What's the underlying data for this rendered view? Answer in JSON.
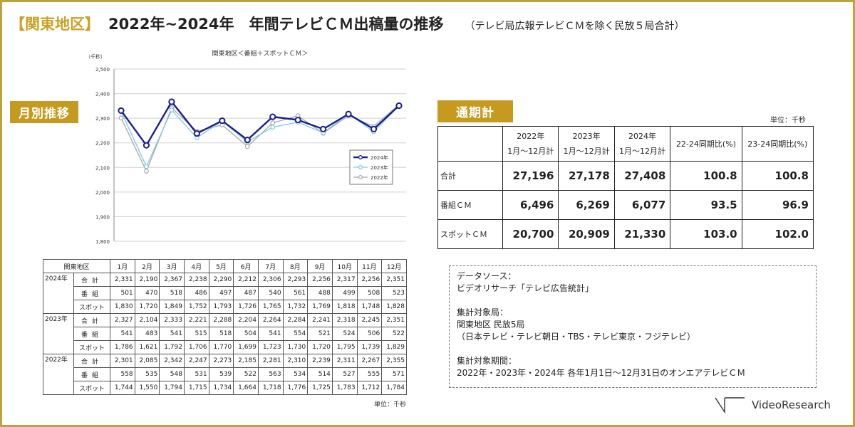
{
  "header": {
    "region": "【関東地区】",
    "title": "2022年~2024年　年間テレビＣＭ出稿量の推移",
    "subtitle": "（テレビ局広報テレビＣＭを除く民放５局合計）"
  },
  "tags": {
    "monthly": "月別推移",
    "annual": "通期計"
  },
  "chart_data": {
    "type": "line",
    "title": "関東地区＜番組＋スポットＣＭ＞",
    "unit_label": "（千秒）",
    "categories": [
      "1月",
      "2月",
      "3月",
      "4月",
      "5月",
      "6月",
      "7月",
      "8月",
      "9月",
      "10月",
      "11月",
      "12月"
    ],
    "ylim": [
      1800,
      2500
    ],
    "yticks": [
      "1,800",
      "1,900",
      "2,000",
      "2,100",
      "2,200",
      "2,300",
      "2,400",
      "2,500"
    ],
    "grid": true,
    "legend_position": "right",
    "show_x_tick_labels": false,
    "series": [
      {
        "name": "2024年",
        "color": "#1a1f8c",
        "values": [
          2331,
          2190,
          2367,
          2238,
          2290,
          2212,
          2306,
          2293,
          2256,
          2317,
          2256,
          2351
        ]
      },
      {
        "name": "2023年",
        "color": "#7ec8e8",
        "values": [
          2327,
          2104,
          2333,
          2221,
          2288,
          2204,
          2264,
          2284,
          2241,
          2318,
          2245,
          2351
        ]
      },
      {
        "name": "2022年",
        "color": "#a8a8a8",
        "values": [
          2301,
          2085,
          2342,
          2247,
          2273,
          2185,
          2281,
          2310,
          2239,
          2311,
          2267,
          2355
        ]
      }
    ]
  },
  "summary": {
    "unit": "単位：千秒",
    "headers": [
      "2022年\n1月～12月計",
      "2023年\n1月～12月計",
      "2024年\n1月～12月計",
      "22-24同期比(%)",
      "23-24同期比(%)"
    ],
    "rows": [
      {
        "label": "合計",
        "values": [
          "27,196",
          "27,178",
          "27,408",
          "100.8",
          "100.8"
        ]
      },
      {
        "label": "番組ＣＭ",
        "values": [
          "6,496",
          "6,269",
          "6,077",
          "93.5",
          "96.9"
        ]
      },
      {
        "label": "スポットＣＭ",
        "values": [
          "20,700",
          "20,909",
          "21,330",
          "103.0",
          "102.0"
        ]
      }
    ]
  },
  "monthly_table": {
    "corner": "関東地区",
    "months": [
      "1月",
      "2月",
      "3月",
      "4月",
      "5月",
      "6月",
      "7月",
      "8月",
      "9月",
      "10月",
      "11月",
      "12月"
    ],
    "unit": "単位：千秒",
    "groups": [
      {
        "year": "2024年",
        "rows": [
          {
            "kind": "合計",
            "values": [
              "2,331",
              "2,190",
              "2,367",
              "2,238",
              "2,290",
              "2,212",
              "2,306",
              "2,293",
              "2,256",
              "2,317",
              "2,256",
              "2,351"
            ]
          },
          {
            "kind": "番組",
            "values": [
              "501",
              "470",
              "518",
              "486",
              "497",
              "487",
              "540",
              "561",
              "488",
              "499",
              "508",
              "523"
            ]
          },
          {
            "kind": "スポット",
            "values": [
              "1,830",
              "1,720",
              "1,849",
              "1,752",
              "1,793",
              "1,726",
              "1,765",
              "1,732",
              "1,769",
              "1,818",
              "1,748",
              "1,828"
            ]
          }
        ]
      },
      {
        "year": "2023年",
        "rows": [
          {
            "kind": "合計",
            "values": [
              "2,327",
              "2,104",
              "2,333",
              "2,221",
              "2,288",
              "2,204",
              "2,264",
              "2,284",
              "2,241",
              "2,318",
              "2,245",
              "2,351"
            ]
          },
          {
            "kind": "番組",
            "values": [
              "541",
              "483",
              "541",
              "515",
              "518",
              "504",
              "541",
              "554",
              "521",
              "524",
              "506",
              "522"
            ]
          },
          {
            "kind": "スポット",
            "values": [
              "1,786",
              "1,621",
              "1,792",
              "1,706",
              "1,770",
              "1,699",
              "1,723",
              "1,730",
              "1,720",
              "1,795",
              "1,739",
              "1,829"
            ]
          }
        ]
      },
      {
        "year": "2022年",
        "rows": [
          {
            "kind": "合計",
            "values": [
              "2,301",
              "2,085",
              "2,342",
              "2,247",
              "2,273",
              "2,185",
              "2,281",
              "2,310",
              "2,239",
              "2,311",
              "2,267",
              "2,355"
            ]
          },
          {
            "kind": "番組",
            "values": [
              "558",
              "535",
              "548",
              "531",
              "539",
              "522",
              "563",
              "534",
              "514",
              "527",
              "555",
              "571"
            ]
          },
          {
            "kind": "スポット",
            "values": [
              "1,744",
              "1,550",
              "1,794",
              "1,715",
              "1,734",
              "1,664",
              "1,718",
              "1,776",
              "1,725",
              "1,783",
              "1,712",
              "1,784"
            ]
          }
        ]
      }
    ]
  },
  "source_box": {
    "lines": [
      "データソース：",
      "ビデオリサーチ「テレビ広告統計」",
      "",
      "集計対象局：",
      "関東地区 民放5局",
      "（日本テレビ・テレビ朝日・TBS・テレビ東京・フジテレビ）",
      "",
      "集計対象期間：",
      "2022年・2023年・2024年 各年1月1日～12月31日のオンエアテレビＣＭ"
    ]
  },
  "brand": {
    "name": "VideoResearch"
  }
}
